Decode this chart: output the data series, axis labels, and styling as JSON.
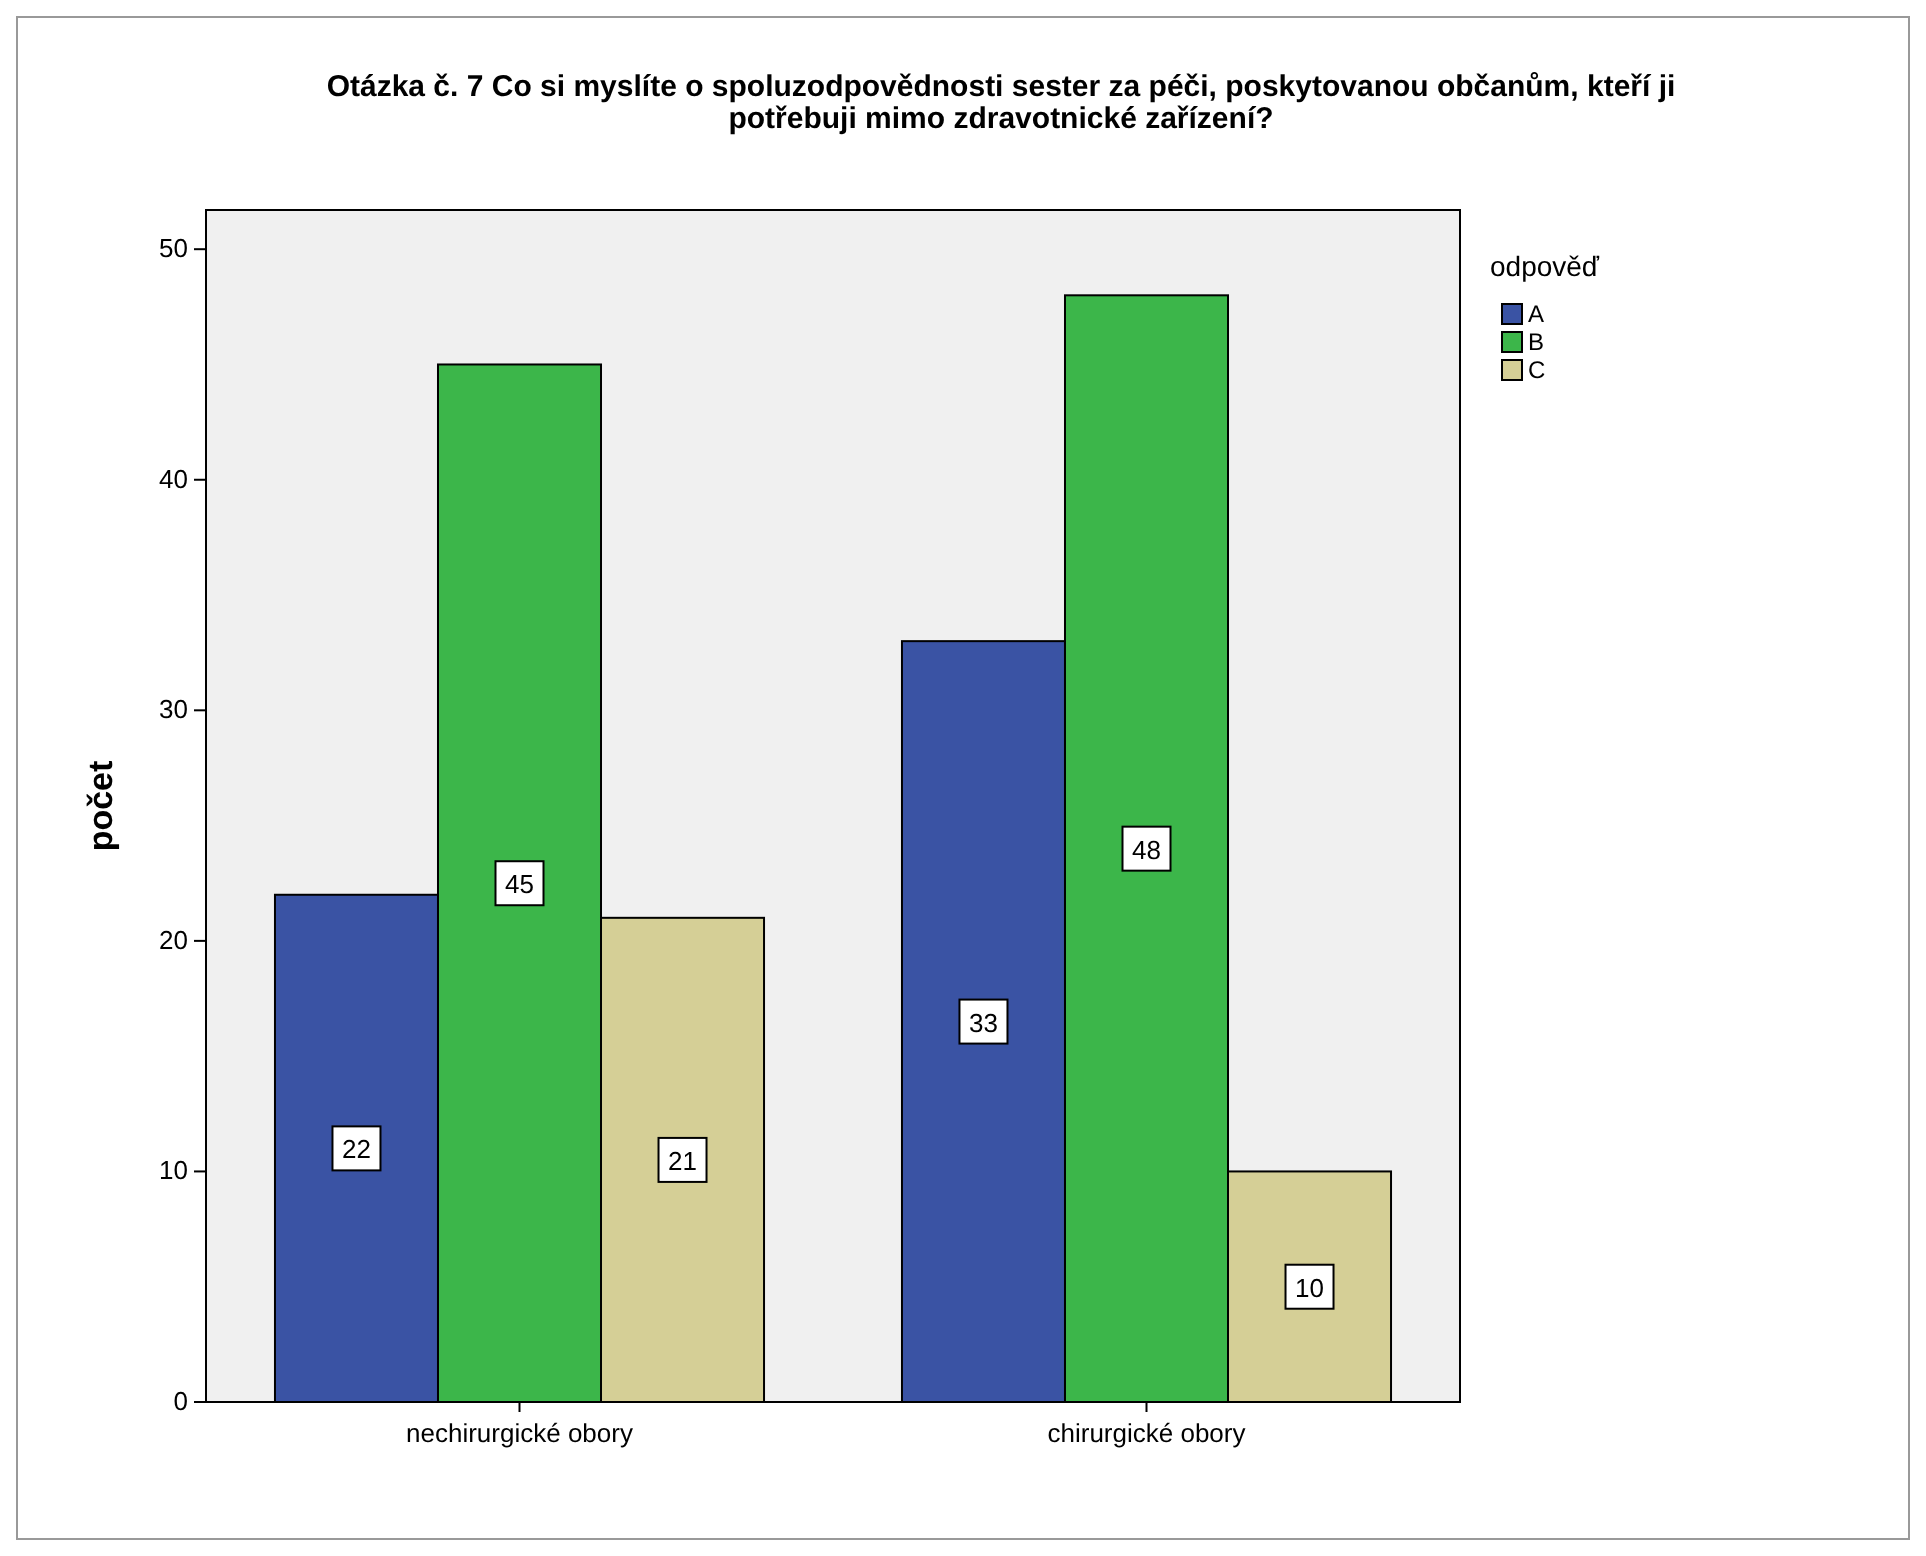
{
  "chart_data": {
    "type": "bar",
    "title": "Otázka č. 7 Co si myslíte o spoluzodpovědnosti sester za péči, poskytovanou občanům, kteří ji potřebuji mimo zdravotnické zařízení?",
    "ylabel": "počet",
    "legend_title": "odpověď",
    "categories": [
      "nechirurgické obory",
      "chirurgické obory"
    ],
    "series": [
      {
        "name": "A",
        "color": "#3a53a4",
        "values": [
          22,
          33
        ]
      },
      {
        "name": "B",
        "color": "#3cb64a",
        "values": [
          45,
          48
        ]
      },
      {
        "name": "C",
        "color": "#d5cf96",
        "values": [
          21,
          10
        ]
      }
    ],
    "ylim": [
      0,
      51.7
    ],
    "yticks": [
      0,
      10,
      20,
      30,
      40,
      50
    ],
    "data_labels": true,
    "legend": "top right",
    "grid": false
  }
}
